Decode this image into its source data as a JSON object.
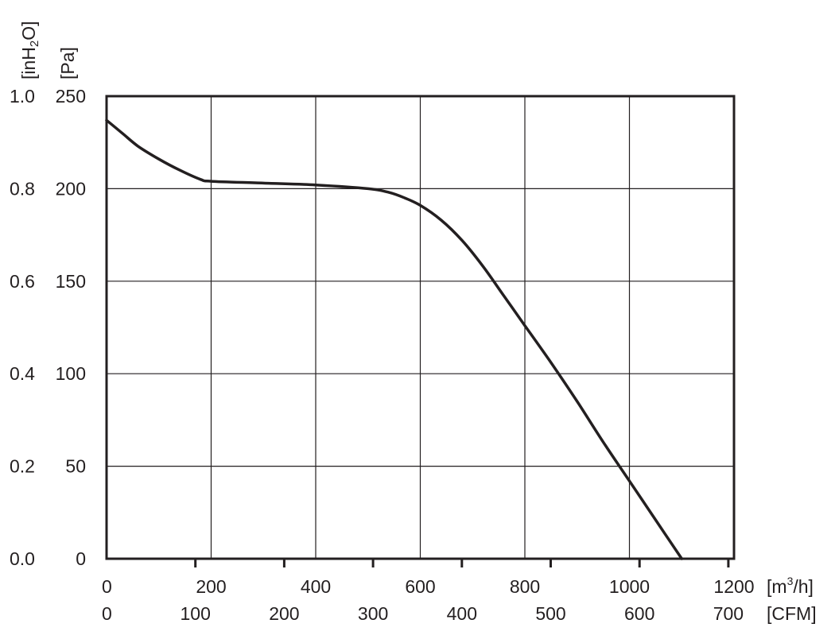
{
  "chart_data": {
    "type": "line",
    "title": "",
    "grid": true,
    "x_axis_primary": {
      "unit_label": "[m³/h]",
      "unit_base": "[m",
      "unit_sup": "3",
      "unit_tail": "/h]",
      "range": [
        0,
        1200
      ],
      "ticks": [
        "0",
        "200",
        "400",
        "600",
        "800",
        "1000",
        "1200"
      ]
    },
    "x_axis_secondary": {
      "unit_label": "[CFM]",
      "ticks": [
        "0",
        "100",
        "200",
        "300",
        "400",
        "500",
        "600",
        "700"
      ]
    },
    "y_axis_primary": {
      "unit_label": "[Pa]",
      "range": [
        0,
        250
      ],
      "ticks": [
        "0",
        "50",
        "100",
        "150",
        "200",
        "250"
      ]
    },
    "y_axis_secondary": {
      "unit_label": "[inH2O]",
      "unit_base": "[inH",
      "unit_sub": "2",
      "unit_tail": "O]",
      "ticks": [
        "0.0",
        "0.2",
        "0.4",
        "0.6",
        "0.8",
        "1.0"
      ]
    },
    "series": [
      {
        "x": [
          0,
          30,
          60,
          100,
          140,
          180,
          200,
          300,
          400,
          500,
          540,
          570,
          600,
          640,
          680,
          720,
          760,
          800,
          850,
          900,
          950,
          1000,
          1050,
          1100
        ],
        "y": [
          237,
          230,
          223,
          216,
          210,
          205,
          204,
          203,
          202,
          200,
          198,
          195,
          191,
          183,
          172,
          158,
          142,
          126,
          106,
          85,
          63,
          42,
          21,
          0
        ]
      }
    ]
  }
}
